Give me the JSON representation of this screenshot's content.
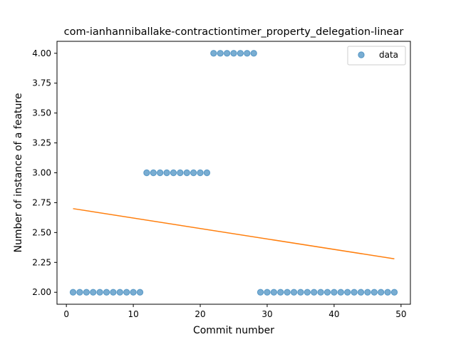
{
  "chart_data": {
    "type": "scatter",
    "title": "com-ianhanniballake-contractiontimer_property_delegation-linear",
    "xlabel": "Commit number",
    "ylabel": "Number of instance of a feature",
    "xlim": [
      -1.4,
      51.4
    ],
    "ylim": [
      1.9,
      4.1
    ],
    "xticks": [
      0,
      10,
      20,
      30,
      40,
      50
    ],
    "yticks": [
      2.0,
      2.25,
      2.5,
      2.75,
      3.0,
      3.25,
      3.5,
      3.75,
      4.0
    ],
    "ytick_labels": [
      "2.00",
      "2.25",
      "2.50",
      "2.75",
      "3.00",
      "3.25",
      "3.50",
      "3.75",
      "4.00"
    ],
    "legend_placement": "top-right",
    "grid": false,
    "series": [
      {
        "name": "data",
        "kind": "scatter",
        "color": "#1f77b4",
        "x": [
          1,
          2,
          3,
          4,
          5,
          6,
          7,
          8,
          9,
          10,
          11,
          12,
          13,
          14,
          15,
          16,
          17,
          18,
          19,
          20,
          21,
          22,
          23,
          24,
          25,
          26,
          27,
          28,
          29,
          30,
          31,
          32,
          33,
          34,
          35,
          36,
          37,
          38,
          39,
          40,
          41,
          42,
          43,
          44,
          45,
          46,
          47,
          48,
          49
        ],
        "y": [
          2,
          2,
          2,
          2,
          2,
          2,
          2,
          2,
          2,
          2,
          2,
          3,
          3,
          3,
          3,
          3,
          3,
          3,
          3,
          3,
          3,
          4,
          4,
          4,
          4,
          4,
          4,
          4,
          2,
          2,
          2,
          2,
          2,
          2,
          2,
          2,
          2,
          2,
          2,
          2,
          2,
          2,
          2,
          2,
          2,
          2,
          2,
          2,
          2
        ]
      },
      {
        "kind": "line",
        "color": "#ff7f0e",
        "x": [
          1,
          49
        ],
        "y": [
          2.7,
          2.28
        ]
      }
    ]
  }
}
